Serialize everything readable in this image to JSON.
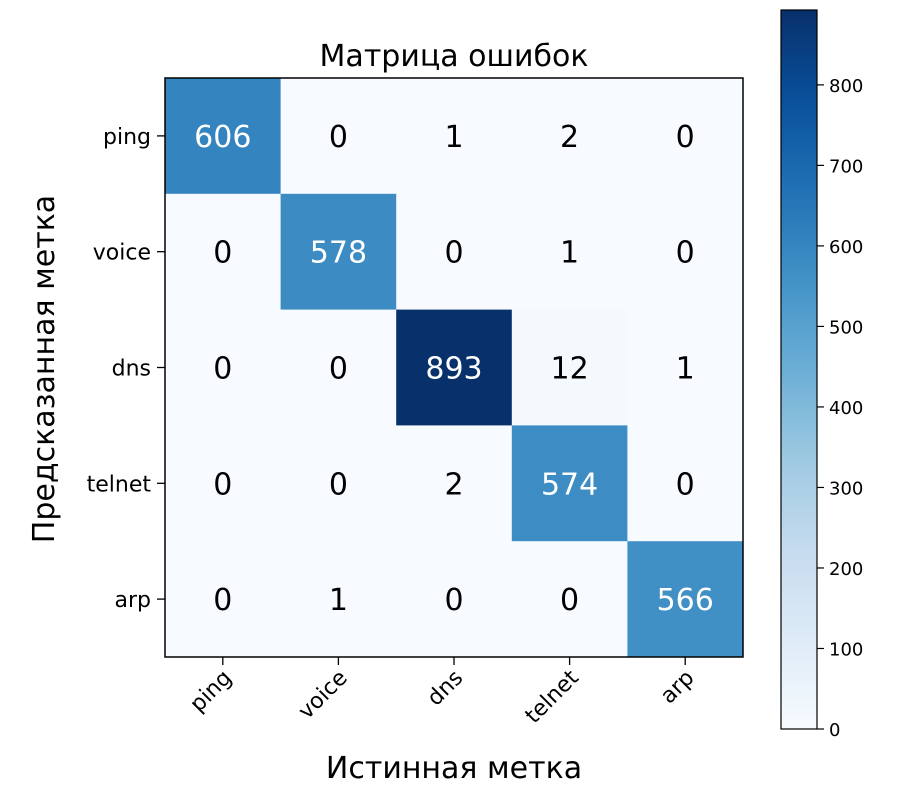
{
  "chart_data": {
    "type": "heatmap",
    "title": "Матрица ошибок",
    "xlabel": "Истинная метка",
    "ylabel": "Предсказанная метка",
    "x_categories": [
      "ping",
      "voice",
      "dns",
      "telnet",
      "arp"
    ],
    "y_categories": [
      "ping",
      "voice",
      "dns",
      "telnet",
      "arp"
    ],
    "matrix": [
      [
        606,
        0,
        1,
        2,
        0
      ],
      [
        0,
        578,
        0,
        1,
        0
      ],
      [
        0,
        0,
        893,
        12,
        1
      ],
      [
        0,
        0,
        2,
        574,
        0
      ],
      [
        0,
        1,
        0,
        0,
        566
      ]
    ],
    "colormap": "Blues",
    "vmin": 0,
    "vmax": 893,
    "colorbar_ticks": [
      0,
      100,
      200,
      300,
      400,
      500,
      600,
      700,
      800
    ],
    "colors": {
      "low": "#f7fbff",
      "high": "#08306b",
      "text_dark": "#000000",
      "text_light": "#ffffff"
    }
  }
}
